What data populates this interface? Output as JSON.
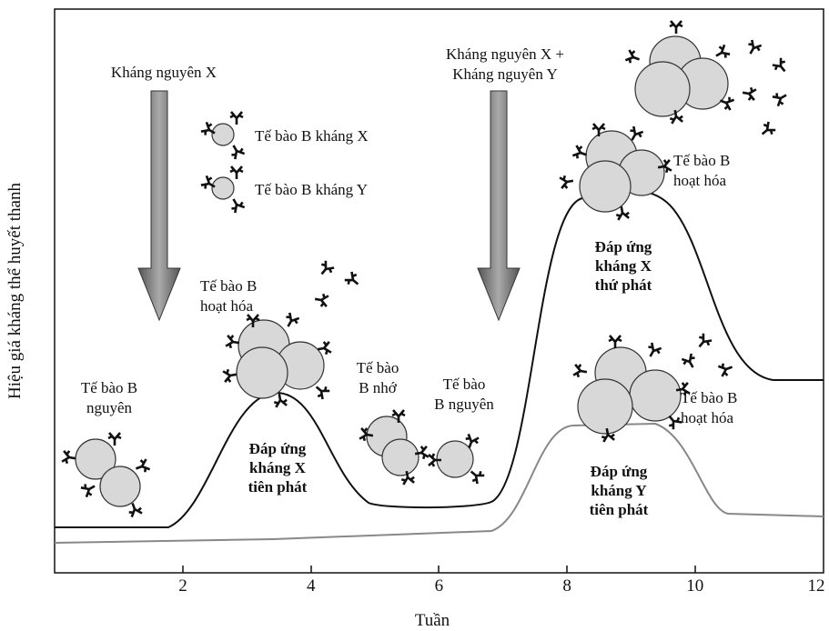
{
  "y_axis": {
    "label": "Hiệu giá kháng thể huyết thanh"
  },
  "x_axis": {
    "label": "Tuần",
    "ticks": [
      "2",
      "4",
      "6",
      "8",
      "10",
      "12"
    ]
  },
  "annotations": [
    {
      "lines": [
        "Kháng nguyên X"
      ]
    },
    {
      "lines": [
        "Tế bào B kháng X"
      ]
    },
    {
      "lines": [
        "Tế bào B kháng Y"
      ]
    },
    {
      "lines": [
        "Kháng nguyên X +",
        "Kháng nguyên Y"
      ]
    },
    {
      "lines": [
        "Tế bào B",
        "hoạt hóa"
      ]
    },
    {
      "lines": [
        "Tế bào B",
        "nguyên"
      ]
    },
    {
      "lines": [
        "Đáp ứng",
        "kháng X",
        "tiên phát"
      ]
    },
    {
      "lines": [
        "Tế bào",
        "B nhớ"
      ]
    },
    {
      "lines": [
        "Tế bào",
        "B nguyên"
      ]
    },
    {
      "lines": [
        "Tế bào B",
        "hoạt hóa"
      ]
    },
    {
      "lines": [
        "Đáp ứng",
        "kháng X",
        "thứ phát"
      ]
    },
    {
      "lines": [
        "Tế bào B",
        "hoạt hóa"
      ]
    },
    {
      "lines": [
        "Đáp ứng",
        "kháng Y",
        "tiên phát"
      ]
    }
  ]
}
